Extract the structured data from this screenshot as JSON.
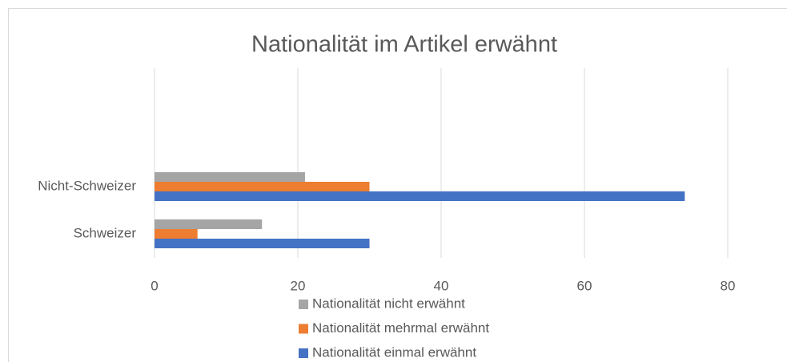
{
  "chart_data": {
    "type": "barh",
    "title": "Nationalität im Artikel erwähnt",
    "categories": [
      "Schweizer",
      "Nicht-Schweizer"
    ],
    "series": [
      {
        "name": "Nationalität nicht erwähnt",
        "color": "#a5a5a5",
        "values": [
          15,
          21
        ]
      },
      {
        "name": "Nationalität mehrmal erwähnt",
        "color": "#ed7d31",
        "values": [
          6,
          30
        ]
      },
      {
        "name": "Nationalität einmal erwähnt",
        "color": "#4472c4",
        "values": [
          30,
          74
        ]
      }
    ],
    "xlim": [
      0,
      80
    ],
    "xticks": [
      0,
      20,
      40,
      60,
      80
    ],
    "grid": true,
    "legend": "bottom"
  }
}
